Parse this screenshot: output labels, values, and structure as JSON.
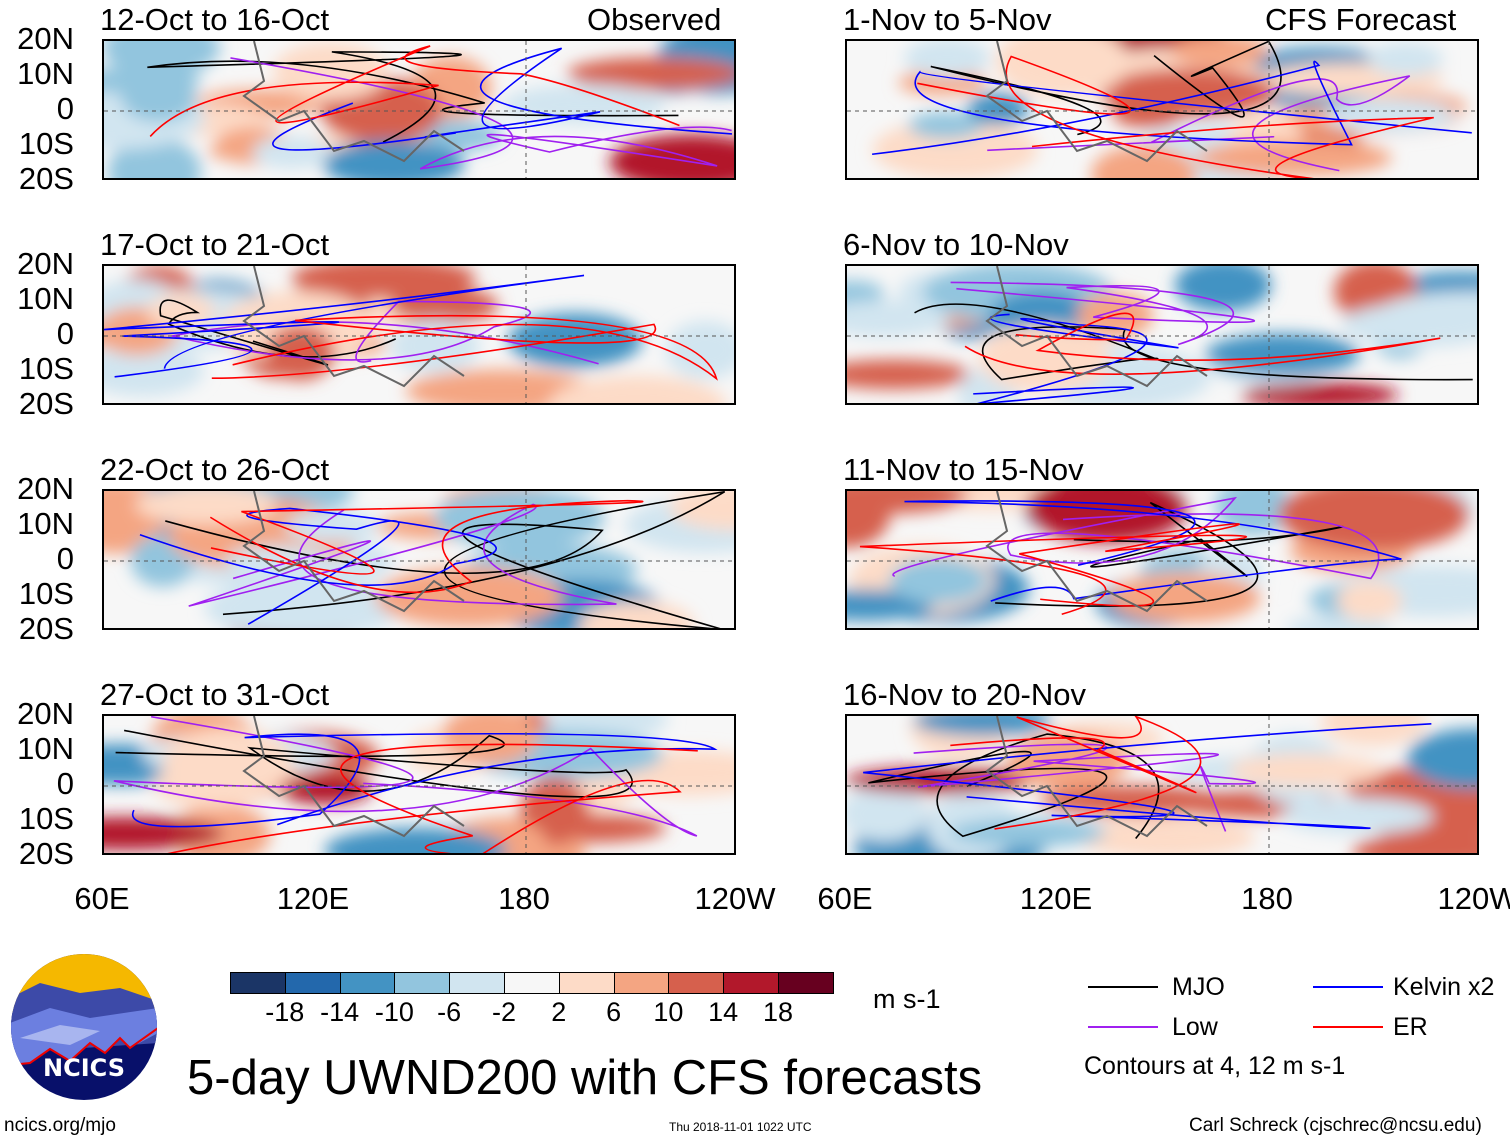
{
  "header": {
    "left_label": "Observed",
    "right_label": "CFS Forecast"
  },
  "panels_left": [
    {
      "title": "12-Oct to 16-Oct"
    },
    {
      "title": "17-Oct to 21-Oct"
    },
    {
      "title": "22-Oct to 26-Oct"
    },
    {
      "title": "27-Oct to 31-Oct"
    }
  ],
  "panels_right": [
    {
      "title": "1-Nov to 5-Nov"
    },
    {
      "title": "6-Nov to 10-Nov"
    },
    {
      "title": "11-Nov to 15-Nov"
    },
    {
      "title": "16-Nov to 20-Nov"
    }
  ],
  "lat_labels": [
    "20N",
    "10N",
    "0",
    "10S",
    "20S"
  ],
  "lon_labels": [
    "60E",
    "120E",
    "180",
    "120W"
  ],
  "colorbar": {
    "colors": [
      "#1b3566",
      "#2368ac",
      "#4393c3",
      "#92c5de",
      "#d1e5f0",
      "#f7f7f7",
      "#fddbc7",
      "#f4a582",
      "#d6604d",
      "#b2182b",
      "#67001f"
    ],
    "labels": [
      "-18",
      "-14",
      "-10",
      "-6",
      "-2",
      "2",
      "6",
      "10",
      "14",
      "18"
    ],
    "units": "m s-1"
  },
  "legend": {
    "items": [
      {
        "label": "MJO",
        "color": "#000000"
      },
      {
        "label": "Low",
        "color": "#a020f0"
      },
      {
        "label": "Kelvin x2",
        "color": "#0000ff"
      },
      {
        "label": "ER",
        "color": "#ff0000"
      }
    ],
    "note": "Contours at 4, 12 m s-1"
  },
  "logo": {
    "text": "NCICS"
  },
  "title": "5-day UWND200 with CFS forecasts",
  "footer": {
    "url": "ncics.org/mjo",
    "timestamp": "Thu 2018-11-01 1022 UTC",
    "author": "Carl Schreck (cjschrec@ncsu.edu)"
  }
}
